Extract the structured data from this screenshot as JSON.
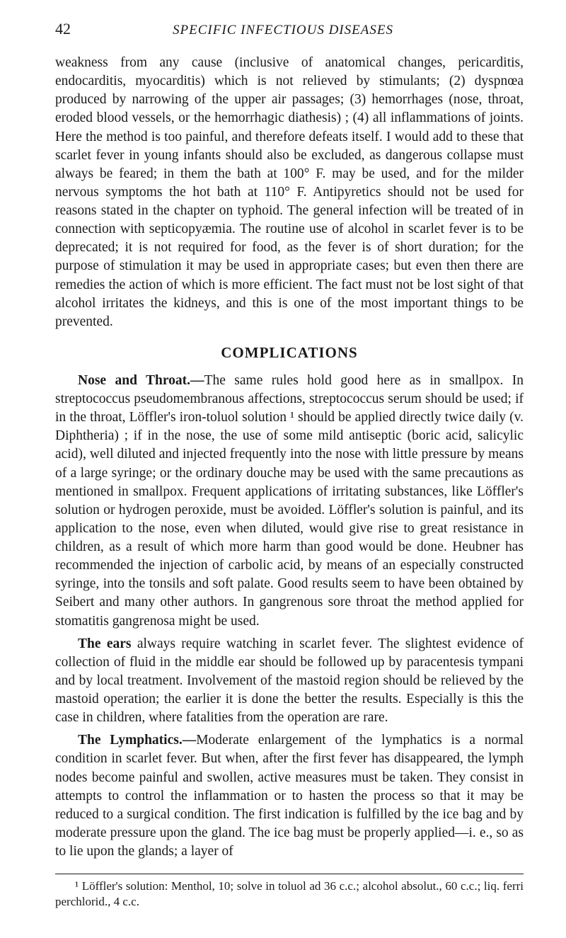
{
  "page_number": "42",
  "running_head": "SPECIFIC INFECTIOUS DISEASES",
  "intro_paragraph": "weakness from any cause (inclusive of anatomical changes, pericarditis, endocarditis, myocarditis) which is not relieved by stimulants; (2) dyspnœa produced by narrowing of the upper air passages; (3) hemorrhages (nose, throat, eroded blood vessels, or the hemorrhagic diathesis) ; (4) all inflammations of joints. Here the method is too painful, and therefore defeats itself. I would add to these that scarlet fever in young infants should also be excluded, as dangerous collapse must always be feared; in them the bath at 100° F. may be used, and for the milder nervous symptoms the hot bath at 110° F. Antipyretics should not be used for reasons stated in the chapter on typhoid. The general infection will be treated of in connection with septicopyæmia. The routine use of alcohol in scarlet fever is to be deprecated; it is not required for food, as the fever is of short duration; for the purpose of stimulation it may be used in appropriate cases; but even then there are remedies the action of which is more efficient. The fact must not be lost sight of that alcohol irritates the kidneys, and this is one of the most important things to be prevented.",
  "section_heading": "COMPLICATIONS",
  "paragraphs": {
    "nose_throat": {
      "lead": "Nose and Throat.—",
      "text": "The same rules hold good here as in smallpox. In streptococcus pseudomembranous affections, streptococcus serum should be used; if in the throat, Löffler's iron-toluol solution ¹ should be applied directly twice daily (v. Diphtheria) ; if in the nose, the use of some mild antiseptic (boric acid, salicylic acid), well diluted and injected frequently into the nose with little pressure by means of a large syringe; or the ordinary douche may be used with the same precautions as mentioned in smallpox. Frequent applications of irritating substances, like Löffler's solution or hydrogen peroxide, must be avoided. Löffler's solution is painful, and its application to the nose, even when diluted, would give rise to great resistance in children, as a result of which more harm than good would be done. Heubner has recommended the injection of carbolic acid, by means of an especially constructed syringe, into the tonsils and soft palate. Good results seem to have been obtained by Seibert and many other authors. In gangrenous sore throat the method applied for stomatitis gangrenosa might be used."
    },
    "ears": {
      "lead": "The ears ",
      "text": "always require watching in scarlet fever. The slightest evidence of collection of fluid in the middle ear should be followed up by paracentesis tympani and by local treatment. Involvement of the mastoid region should be relieved by the mastoid operation; the earlier it is done the better the results. Especially is this the case in children, where fatalities from the operation are rare."
    },
    "lymphatics": {
      "lead": "The Lymphatics.—",
      "text": "Moderate enlargement of the lymphatics is a normal condition in scarlet fever. But when, after the first fever has disappeared, the lymph nodes become painful and swollen, active measures must be taken. They consist in attempts to control the inflammation or to hasten the process so that it may be reduced to a surgical condition. The first indication is fulfilled by the ice bag and by moderate pressure upon the gland. The ice bag must be properly applied—i. e., so as to lie upon the glands; a layer of"
    }
  },
  "footnote": "¹ Löffler's solution: Menthol, 10; solve in toluol ad 36 c.c.; alcohol absolut., 60 c.c.; liq. ferri perchlorid., 4 c.c."
}
